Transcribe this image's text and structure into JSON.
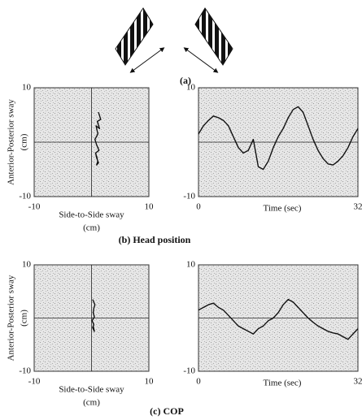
{
  "captions": [
    "(a)",
    "(b) Head position",
    "(c) COP"
  ],
  "chart_data": [
    {
      "type": "line",
      "xlabel": [
        "Side-to-Side sway",
        "(cm)"
      ],
      "ylabel": [
        "Anterior-Posterior sway",
        "(cm)"
      ],
      "x": [
        1.2,
        1.6,
        1.0,
        1.4,
        0.8,
        1.1,
        0.6,
        0.9,
        1.3,
        0.7,
        1.0,
        0.8,
        1.2,
        0.9,
        1.1
      ],
      "values": [
        5.5,
        4.2,
        3.8,
        2.5,
        3.0,
        1.5,
        0.5,
        -0.5,
        -1.5,
        -2.0,
        -3.0,
        -2.5,
        -3.8,
        -4.2,
        -3.5
      ],
      "xlim": [
        -10,
        10
      ],
      "ylim": [
        -10,
        10
      ],
      "xticks": [
        -10,
        10
      ],
      "yticks": [
        -10,
        10
      ],
      "hlines": [
        0
      ],
      "vlines": [
        0
      ],
      "color": "#111111"
    },
    {
      "type": "line",
      "xlabel": [
        "Time (sec)"
      ],
      "x": [
        0,
        1,
        2,
        3,
        4,
        5,
        6,
        7,
        8,
        9,
        10,
        11,
        12,
        13,
        14,
        15,
        16,
        17,
        18,
        19,
        20,
        21,
        22,
        23,
        24,
        25,
        26,
        27,
        28,
        29,
        30,
        31,
        32
      ],
      "values": [
        1.5,
        3.0,
        4.0,
        4.8,
        4.5,
        4.0,
        3.0,
        1.0,
        -1.0,
        -2.0,
        -1.5,
        0.5,
        -4.5,
        -5.0,
        -3.5,
        -1.0,
        1.0,
        2.5,
        4.5,
        6.0,
        6.5,
        5.5,
        3.0,
        0.5,
        -1.5,
        -3.0,
        -4.0,
        -4.2,
        -3.5,
        -2.5,
        -1.0,
        1.0,
        2.5
      ],
      "xlim": [
        0,
        32
      ],
      "ylim": [
        -10,
        10
      ],
      "xticks": [
        0,
        32
      ],
      "yticks": [
        -10,
        10
      ],
      "hlines": [
        0
      ],
      "vlines": [],
      "color": "#111111"
    },
    {
      "type": "line",
      "xlabel": [
        "Side-to-Side sway",
        "(cm)"
      ],
      "ylabel": [
        "Anterior-Posterior sway",
        "(cm)"
      ],
      "x": [
        0.2,
        0.6,
        0.4,
        0.3,
        0.5,
        0.1,
        0.4,
        0.2,
        0.5,
        0.3
      ],
      "values": [
        3.5,
        2.5,
        1.8,
        1.0,
        0.2,
        -0.5,
        -1.2,
        -1.8,
        -2.5,
        -1.5
      ],
      "xlim": [
        -10,
        10
      ],
      "ylim": [
        -10,
        10
      ],
      "xticks": [
        -10,
        10
      ],
      "yticks": [
        -10,
        10
      ],
      "hlines": [
        0
      ],
      "vlines": [
        0
      ],
      "color": "#111111"
    },
    {
      "type": "line",
      "xlabel": [
        "Time (sec)"
      ],
      "x": [
        0,
        1,
        2,
        3,
        4,
        5,
        6,
        7,
        8,
        9,
        10,
        11,
        12,
        13,
        14,
        15,
        16,
        17,
        18,
        19,
        20,
        21,
        22,
        23,
        24,
        25,
        26,
        27,
        28,
        29,
        30,
        31,
        32
      ],
      "values": [
        1.5,
        2.0,
        2.5,
        2.8,
        2.0,
        1.5,
        0.5,
        -0.5,
        -1.5,
        -2.0,
        -2.5,
        -3.0,
        -2.0,
        -1.5,
        -0.5,
        0.0,
        1.0,
        2.5,
        3.5,
        3.0,
        2.0,
        1.0,
        0.0,
        -0.8,
        -1.5,
        -2.0,
        -2.5,
        -2.8,
        -3.0,
        -3.5,
        -4.0,
        -3.0,
        -2.0
      ],
      "xlim": [
        0,
        32
      ],
      "ylim": [
        -10,
        10
      ],
      "xticks": [
        0,
        32
      ],
      "yticks": [
        -10,
        10
      ],
      "hlines": [
        0
      ],
      "vlines": [],
      "color": "#111111"
    }
  ]
}
